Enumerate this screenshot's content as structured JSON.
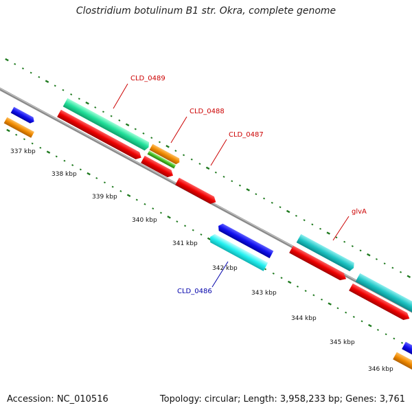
{
  "title": "Clostridium botulinum B1 str. Okra, complete genome",
  "footer": {
    "accession": "Accession: NC_010516",
    "summary": "Topology: circular; Length: 3,958,233 bp; Genes: 3,761"
  },
  "colors": {
    "backbone": "#8a8a8a",
    "tick": "#1f7a1f",
    "label_red": "#cc0000",
    "label_blue": "#0000aa"
  },
  "scale_labels": [
    "337 kbp",
    "338 kbp",
    "339 kbp",
    "340 kbp",
    "341 kbp",
    "342 kbp",
    "343 kbp",
    "344 kbp",
    "345 kbp",
    "346 kbp"
  ],
  "genes": [
    {
      "name": "CLD_0489",
      "color": "#22e09a",
      "label_color": "red"
    },
    {
      "name": "CLD_0488",
      "color": "#f08a00",
      "label_color": "red"
    },
    {
      "name": "CLD_0487",
      "color": "#ee0000",
      "label_color": "red"
    },
    {
      "name": "glvA",
      "color": "#1ec4c4",
      "label_color": "red"
    },
    {
      "name": "CLD_0486",
      "color": "#22f0f0",
      "label_color": "blue"
    }
  ],
  "feature_colors": {
    "cds_red": "#ee0000",
    "cds_blue": "#1010ee",
    "cds_orange": "#f08a00",
    "cds_green": "#22e09a",
    "cds_teal": "#1ec4c4",
    "cds_cyan": "#22f0f0",
    "cds_lime": "#44bb22"
  }
}
